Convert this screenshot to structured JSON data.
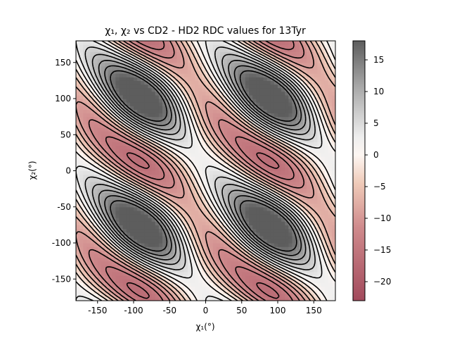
{
  "chart_data": {
    "type": "contour",
    "title": "χ₁, χ₂ vs CD2 - HD2 RDC values for 13Tyr",
    "xlabel": "χ₁(°)",
    "ylabel": "χ₂(°)",
    "xlim": [
      -180,
      180
    ],
    "ylim": [
      -180,
      180
    ],
    "xticks": [
      -150,
      -100,
      -50,
      0,
      50,
      100,
      150
    ],
    "yticks": [
      -150,
      -100,
      -50,
      0,
      50,
      100,
      150
    ],
    "colorbar": {
      "vmin": -23,
      "vmax": 18,
      "ticks": [
        -20,
        -15,
        -10,
        -5,
        0,
        5,
        10,
        15
      ],
      "colormap": "gray (positive) - white (0) - rose-brown (negative)",
      "low_color": "#a24a5c",
      "mid_color": "#fdf6f2",
      "high_color": "#5d5d5d"
    },
    "contour_style": {
      "positive": "solid black",
      "negative": "dashed black"
    },
    "features": [
      {
        "kind": "max",
        "chi1": -135,
        "chi2": 72,
        "value": 16
      },
      {
        "kind": "max",
        "chi1": 25,
        "chi2": 145,
        "value": 16
      },
      {
        "kind": "max",
        "chi1": 100,
        "chi2": -72,
        "value": 17
      },
      {
        "kind": "max",
        "chi1": -50,
        "chi2": -148,
        "value": 17
      },
      {
        "kind": "max",
        "chi1": 178,
        "chi2": 55,
        "value": 13
      },
      {
        "kind": "min",
        "chi1": 0,
        "chi2": 42,
        "value": -20
      },
      {
        "kind": "min",
        "chi1": -140,
        "chi2": -38,
        "value": -22
      },
      {
        "kind": "min",
        "chi1": 115,
        "chi2": 160,
        "value": -20
      },
      {
        "kind": "min",
        "chi1": 90,
        "chi2": -162,
        "value": -22
      }
    ],
    "grid": false
  }
}
